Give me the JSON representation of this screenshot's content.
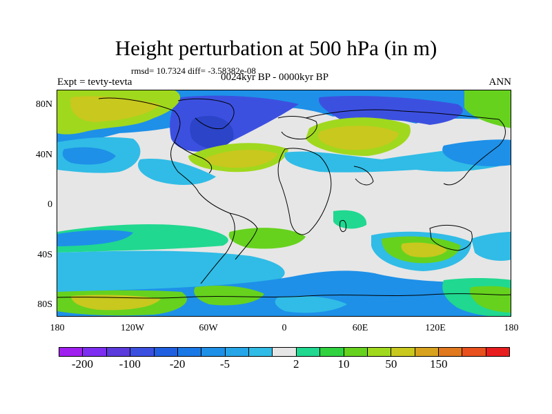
{
  "title": "Height perturbation at 500 hPa (in m)",
  "stats": "rmsd= 10.7324 diff= -3.58382e-08",
  "timespan": "0024kyr BP - 0000kyr BP",
  "experiment": "Expt = tevty-tevta",
  "season": "ANN",
  "lat_ticks": [
    "80N",
    "40N",
    "0",
    "40S",
    "80S"
  ],
  "lon_ticks": [
    "180",
    "120W",
    "60W",
    "0",
    "60E",
    "120E",
    "180"
  ],
  "colorbar": {
    "colors": [
      "#a020f0",
      "#7d2ef0",
      "#5b3bdc",
      "#3c50e0",
      "#2060e0",
      "#1a78e6",
      "#1e90e8",
      "#26a6e8",
      "#30bce6",
      "#e6e6e6",
      "#20d890",
      "#30d240",
      "#66d21e",
      "#a0d81e",
      "#c8c81e",
      "#d8a21e",
      "#e0781e",
      "#e8501e",
      "#e81e1e"
    ],
    "labels": [
      "-200",
      "-100",
      "-20",
      "-5",
      "2",
      "10",
      "50",
      "150"
    ]
  },
  "legend_colors": {
    "neutral": "#e6e6e6",
    "strong_negative": "#3c50e0",
    "negative": "#1e90e8",
    "weak_negative": "#30bce6",
    "weak_positive": "#20d890",
    "positive": "#66d21e",
    "strong_positive": "#c8c81e"
  }
}
